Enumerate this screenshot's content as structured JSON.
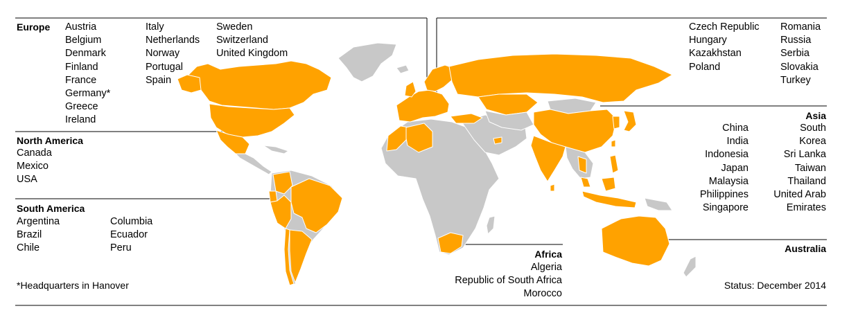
{
  "regions": {
    "europe": {
      "title": "Europe",
      "col1": [
        "Austria",
        "Belgium",
        "Denmark",
        "Finland",
        "France",
        "Germany*",
        "Greece",
        "Ireland"
      ],
      "col2": [
        "Italy",
        "Netherlands",
        "Norway",
        "Portugal",
        "Spain"
      ],
      "col3": [
        "Sweden",
        "Switzerland",
        "United Kingdom"
      ],
      "col4": [
        "Czech Republic",
        "Hungary",
        "Kazakhstan",
        "Poland"
      ],
      "col5": [
        "Romania",
        "Russia",
        "Serbia",
        "Slovakia",
        "Turkey"
      ]
    },
    "north_america": {
      "title": "North America",
      "countries": [
        "Canada",
        "Mexico",
        "USA"
      ]
    },
    "south_america": {
      "title": "South America",
      "col1": [
        "Argentina",
        "Brazil",
        "Chile"
      ],
      "col2": [
        "Columbia",
        "Ecuador",
        "Peru"
      ]
    },
    "asia": {
      "title": "Asia",
      "col1": [
        "China",
        "India",
        "Indonesia",
        "Japan",
        "Malaysia",
        "Philippines",
        "Singapore"
      ],
      "col2": [
        "South",
        "Korea",
        "Sri Lanka",
        "Taiwan",
        "Thailand",
        "United Arab",
        "Emirates"
      ]
    },
    "africa": {
      "title": "Africa",
      "countries": [
        "Algeria",
        "Republic of South Africa",
        "Morocco"
      ]
    },
    "australia": {
      "title": "Australia"
    }
  },
  "footnote": "*Headquarters in Hanover",
  "status": "Status: December 2014",
  "colors": {
    "highlight": "#ffa200",
    "land": "#c8c8c8",
    "border": "#ffffff",
    "line": "#000000"
  }
}
